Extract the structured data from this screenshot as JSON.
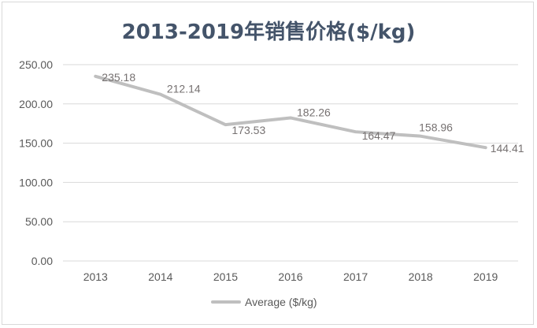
{
  "chart_data": {
    "type": "line",
    "title": "2013-2019年销售价格($/kg)",
    "categories": [
      "2013",
      "2014",
      "2015",
      "2016",
      "2017",
      "2018",
      "2019"
    ],
    "series": [
      {
        "name": "Average ($/kg)",
        "values": [
          235.18,
          212.14,
          173.53,
          182.26,
          164.47,
          158.96,
          144.41
        ],
        "data_labels": [
          "235.18",
          "212.14",
          "173.53",
          "182.26",
          "164.47",
          "158.96",
          "144.41"
        ],
        "color": "#bfbfbf"
      }
    ],
    "y_ticks": [
      "0.00",
      "50.00",
      "100.00",
      "150.00",
      "200.00",
      "250.00"
    ],
    "ylim": [
      0,
      250
    ],
    "xlabel": "",
    "ylabel": "",
    "grid": "horizontal",
    "legend": "bottom",
    "colors": {
      "title": "#44546a",
      "grid": "#d9d9d9",
      "tick_text": "#595959",
      "data_label": "#767171"
    }
  }
}
